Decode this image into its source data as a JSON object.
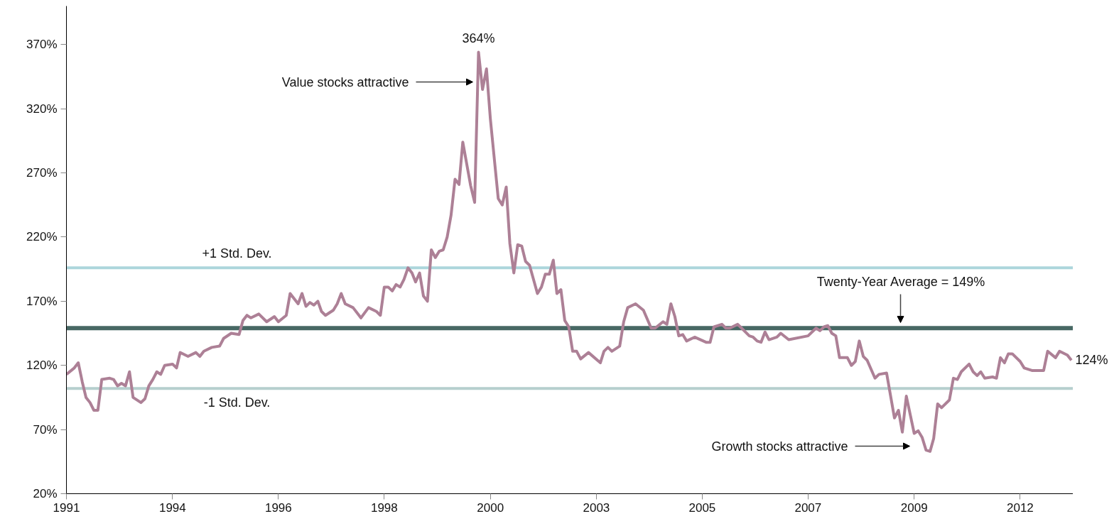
{
  "chart_data": {
    "type": "line",
    "xlim": [
      "1991-10",
      "2013-02-15"
    ],
    "ylim": [
      20,
      400
    ],
    "xticks": [
      {
        "value": "1991-10",
        "label": "1991"
      },
      {
        "value": "1994-01",
        "label": "1994"
      },
      {
        "value": "1996-04",
        "label": "1996"
      },
      {
        "value": "1998-07",
        "label": "1998"
      },
      {
        "value": "2000-10",
        "label": "2000"
      },
      {
        "value": "2003-01",
        "label": "2003"
      },
      {
        "value": "2005-04",
        "label": "2005"
      },
      {
        "value": "2007-07",
        "label": "2007"
      },
      {
        "value": "2009-10",
        "label": "2009"
      },
      {
        "value": "2012-01",
        "label": "2012"
      }
    ],
    "yticks": [
      {
        "value": 20,
        "label": "20%"
      },
      {
        "value": 70,
        "label": "70%"
      },
      {
        "value": 120,
        "label": "120%"
      },
      {
        "value": 170,
        "label": "170%"
      },
      {
        "value": 220,
        "label": "220%"
      },
      {
        "value": 270,
        "label": "270%"
      },
      {
        "value": 320,
        "label": "320%"
      },
      {
        "value": 370,
        "label": "370%"
      }
    ],
    "grid": false,
    "marker": "none",
    "line_style": "solid",
    "series": [
      {
        "color": "#ad8096",
        "x": [
          "1991-10",
          "1991-12",
          "1992-01",
          "1992-02",
          "1992-03",
          "1992-04",
          "1992-05",
          "1992-06",
          "1992-07",
          "1992-09",
          "1992-10",
          "1992-11",
          "1992-12",
          "1993-01",
          "1993-02",
          "1993-03",
          "1993-05",
          "1993-06",
          "1993-07",
          "1993-08",
          "1993-09",
          "1993-10",
          "1993-11",
          "1994-01",
          "1994-02",
          "1994-03",
          "1994-05",
          "1994-07",
          "1994-08",
          "1994-09",
          "1994-11",
          "1995-01",
          "1995-02",
          "1995-04",
          "1995-06",
          "1995-07",
          "1995-08",
          "1995-09",
          "1995-11",
          "1996-01",
          "1996-03",
          "1996-04",
          "1996-06",
          "1996-07",
          "1996-09",
          "1996-10",
          "1996-11",
          "1996-12",
          "1997-01",
          "1997-02",
          "1997-03",
          "1997-04",
          "1997-06",
          "1997-07",
          "1997-08",
          "1997-09",
          "1997-11",
          "1998-01",
          "1998-03",
          "1998-05",
          "1998-06",
          "1998-07",
          "1998-08",
          "1998-09",
          "1998-10",
          "1998-11",
          "1998-12",
          "1999-01",
          "1999-02",
          "1999-03",
          "1999-04",
          "1999-05",
          "1999-06",
          "1999-07",
          "1999-08",
          "1999-09",
          "1999-10",
          "1999-11",
          "1999-12",
          "2000-01",
          "2000-02",
          "2000-03",
          "2000-05",
          "2000-06",
          "2000-07",
          "2000-08",
          "2000-09",
          "2000-10",
          "2000-12",
          "2001-01",
          "2001-02",
          "2001-03",
          "2001-04",
          "2001-05",
          "2001-06",
          "2001-07",
          "2001-08",
          "2001-10",
          "2001-11",
          "2001-12",
          "2002-01",
          "2002-02",
          "2002-03",
          "2002-04",
          "2002-05",
          "2002-06",
          "2002-07",
          "2002-08",
          "2002-09",
          "2002-11",
          "2003-02",
          "2003-03",
          "2003-04",
          "2003-05",
          "2003-07",
          "2003-08",
          "2003-09",
          "2003-11",
          "2004-01",
          "2004-03",
          "2004-04",
          "2004-06",
          "2004-07",
          "2004-08",
          "2004-09",
          "2004-10",
          "2004-11",
          "2004-12",
          "2005-02",
          "2005-05",
          "2005-06",
          "2005-07",
          "2005-09",
          "2005-10",
          "2005-11",
          "2006-01",
          "2006-02",
          "2006-04",
          "2006-05",
          "2006-06",
          "2006-07",
          "2006-08",
          "2006-09",
          "2006-11",
          "2006-12",
          "2007-02",
          "2007-07",
          "2007-09",
          "2007-10",
          "2007-11",
          "2007-12",
          "2008-01",
          "2008-02",
          "2008-03",
          "2008-05",
          "2008-06",
          "2008-07",
          "2008-08",
          "2008-09",
          "2008-10",
          "2008-12",
          "2009-01",
          "2009-03",
          "2009-05",
          "2009-06",
          "2009-07",
          "2009-08",
          "2009-10",
          "2009-11",
          "2009-12",
          "2010-01",
          "2010-02",
          "2010-03",
          "2010-04",
          "2010-05",
          "2010-07",
          "2010-08",
          "2010-09",
          "2010-10",
          "2010-12",
          "2011-01",
          "2011-02",
          "2011-03",
          "2011-04",
          "2011-06",
          "2011-07",
          "2011-08",
          "2011-09",
          "2011-10",
          "2011-11",
          "2012-01",
          "2012-02",
          "2012-04",
          "2012-05",
          "2012-07",
          "2012-08",
          "2012-10",
          "2012-11",
          "2013-01",
          "2013-02"
        ],
        "values": [
          113,
          118,
          122,
          107,
          95,
          91,
          85,
          85,
          109,
          110,
          109,
          104,
          106,
          104,
          115,
          95,
          91,
          94,
          104,
          109,
          115,
          113,
          120,
          121,
          118,
          130,
          127,
          130,
          127,
          131,
          134,
          135,
          141,
          145,
          144,
          155,
          159,
          157,
          160,
          154,
          158,
          154,
          159,
          176,
          168,
          176,
          166,
          169,
          167,
          170,
          162,
          159,
          163,
          168,
          176,
          168,
          165,
          157,
          165,
          162,
          159,
          181,
          181,
          178,
          183,
          181,
          187,
          196,
          192,
          185,
          192,
          174,
          170,
          210,
          204,
          209,
          210,
          220,
          237,
          265,
          261,
          294,
          260,
          247,
          364,
          335,
          351,
          312,
          250,
          245,
          259,
          215,
          192,
          214,
          213,
          201,
          198,
          176,
          181,
          191,
          191,
          202,
          176,
          179,
          155,
          150,
          131,
          131,
          125,
          130,
          122,
          131,
          134,
          131,
          135,
          154,
          165,
          168,
          163,
          149,
          149,
          154,
          152,
          168,
          158,
          143,
          144,
          139,
          142,
          138,
          138,
          150,
          152,
          149,
          149,
          152,
          149,
          143,
          142,
          139,
          138,
          146,
          140,
          142,
          145,
          140,
          143,
          149,
          147,
          150,
          151,
          145,
          143,
          126,
          126,
          120,
          123,
          139,
          127,
          124,
          110,
          113,
          114,
          79,
          85,
          68,
          96,
          67,
          69,
          64,
          54,
          53,
          63,
          90,
          87,
          93,
          110,
          109,
          115,
          121,
          115,
          112,
          115,
          110,
          111,
          110,
          126,
          122,
          129,
          129,
          123,
          118,
          116,
          116,
          116,
          131,
          126,
          131,
          128,
          124
        ],
        "value_labels": [
          null,
          null,
          null,
          null,
          null,
          null,
          null,
          null,
          null,
          null,
          null,
          null,
          null,
          null,
          null,
          null,
          null,
          null,
          null,
          null,
          null,
          null,
          null,
          null,
          null,
          null,
          null,
          null,
          null,
          null,
          null,
          null,
          null,
          null,
          null,
          null,
          null,
          null,
          null,
          null,
          null,
          null,
          null,
          null,
          null,
          null,
          null,
          null,
          null,
          null,
          null,
          null,
          null,
          null,
          null,
          null,
          null,
          null,
          null,
          null,
          null,
          null,
          null,
          null,
          null,
          null,
          null,
          null,
          null,
          null,
          null,
          null,
          null,
          null,
          null,
          null,
          null,
          null,
          null,
          null,
          null,
          null,
          null,
          null,
          "364%",
          null,
          null,
          null,
          null,
          null,
          null,
          null,
          null,
          null,
          null,
          null,
          null,
          null,
          null,
          null,
          null,
          null,
          null,
          null,
          null,
          null,
          null,
          null,
          null,
          null,
          null,
          null,
          null,
          null,
          null,
          null,
          null,
          null,
          null,
          null,
          null,
          null,
          null,
          null,
          null,
          null,
          null,
          null,
          null,
          null,
          null,
          null,
          null,
          null,
          null,
          null,
          null,
          null,
          null,
          null,
          null,
          null,
          null,
          null,
          null,
          null,
          null,
          null,
          null,
          null,
          null,
          null,
          null,
          null,
          null,
          null,
          null,
          null,
          null,
          null,
          null,
          null,
          null,
          null,
          null,
          null,
          null,
          null,
          null,
          null,
          null,
          null,
          null,
          null,
          null,
          null,
          null,
          null,
          null,
          null,
          null,
          null,
          null,
          null,
          null,
          null,
          null,
          null,
          null,
          null,
          null,
          null,
          null,
          null,
          null,
          null,
          null,
          null,
          null,
          "124%"
        ]
      }
    ],
    "ref_lines": [
      {
        "axis": "y",
        "value": 196,
        "label": "+1 Std. Dev.",
        "color": "#acd6dc"
      },
      {
        "axis": "y",
        "value": 149,
        "color": "#476864"
      },
      {
        "axis": "y",
        "value": 102,
        "label": "-1 Std. Dev.",
        "color": "#b6cfce"
      }
    ],
    "annotations": [
      "Value stocks attractive",
      "Twenty-Year Average = 149%",
      "Growth stocks attractive"
    ]
  }
}
